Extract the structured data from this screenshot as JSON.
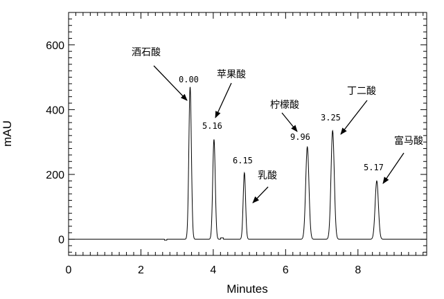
{
  "chart_data": {
    "type": "line",
    "title": "",
    "xlabel": "Minutes",
    "ylabel": "mAU",
    "xlim": [
      0,
      9.9
    ],
    "ylim": [
      -50,
      700
    ],
    "xticks": [
      0,
      2,
      4,
      6,
      8
    ],
    "yticks": [
      0,
      200,
      400,
      600
    ],
    "grid": false,
    "colors": {
      "trace": "#000000",
      "axes": "#000000",
      "background": "#ffffff"
    },
    "series": [
      {
        "peaks": [
          {
            "rt": 3.36,
            "height": 470,
            "width": 0.035
          },
          {
            "rt": 4.02,
            "height": 308,
            "width": 0.035
          },
          {
            "rt": 4.86,
            "height": 205,
            "width": 0.033
          },
          {
            "rt": 6.6,
            "height": 285,
            "width": 0.045
          },
          {
            "rt": 7.3,
            "height": 335,
            "width": 0.045
          },
          {
            "rt": 8.52,
            "height": 180,
            "width": 0.045
          }
        ]
      }
    ],
    "annotations": [
      {
        "name": "酒石酸",
        "value_label": "0.00",
        "rt": 3.36
      },
      {
        "name": "苹果酸",
        "value_label": "5.16",
        "rt": 4.02
      },
      {
        "name": "乳酸",
        "value_label": "6.15",
        "rt": 4.86
      },
      {
        "name": "柠檬酸",
        "value_label": "9.96",
        "rt": 6.6
      },
      {
        "name": "丁二酸",
        "value_label": "3.25",
        "rt": 7.3
      },
      {
        "name": "富马酸",
        "value_label": "5.17",
        "rt": 8.52
      }
    ]
  }
}
